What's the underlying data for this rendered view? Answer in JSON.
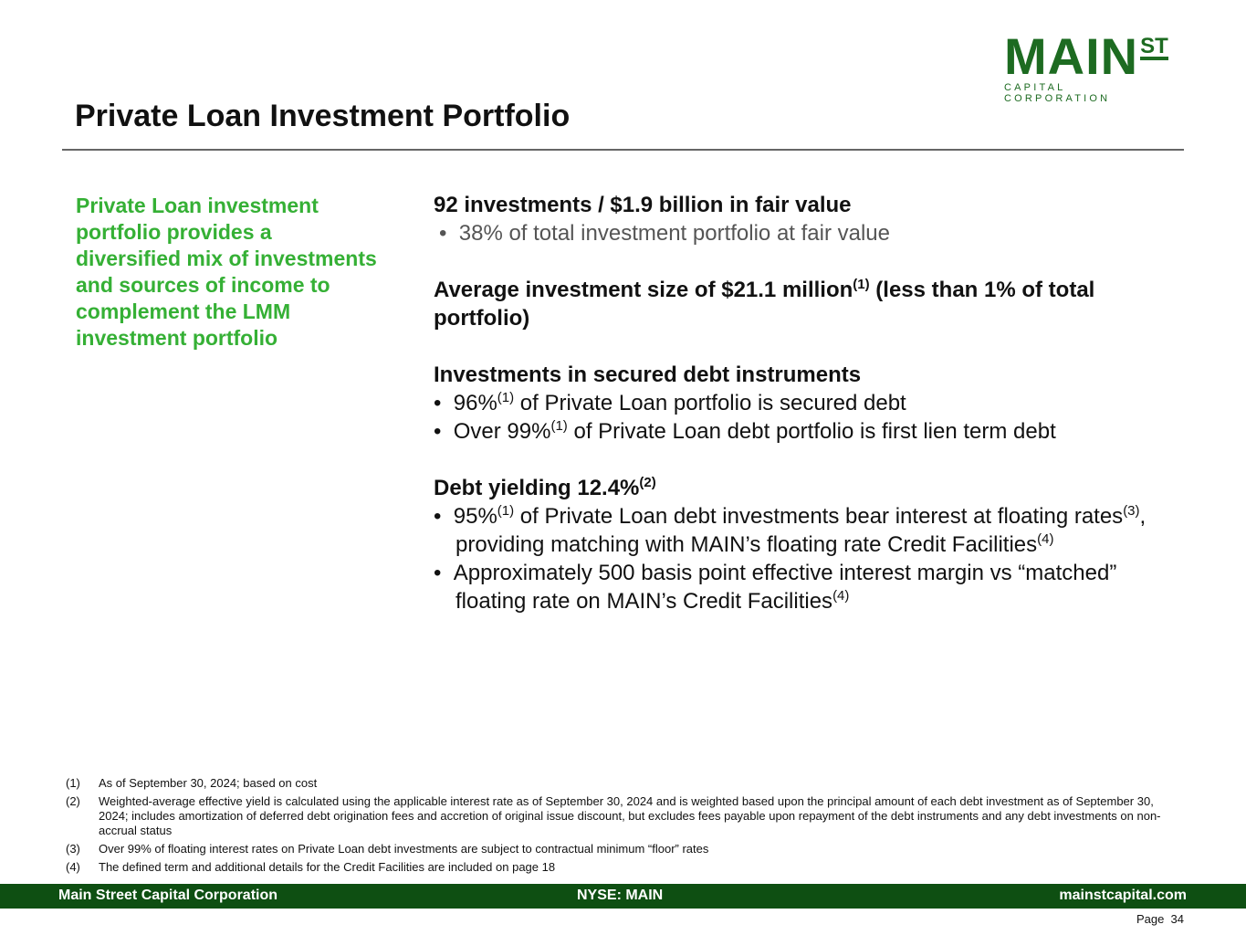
{
  "logo": {
    "main": "MAIN",
    "st": "ST",
    "sub": "CAPITAL CORPORATION"
  },
  "title": "Private Loan Investment Portfolio",
  "left_text": "Private Loan investment portfolio provides a diversified mix of investments and sources of income to complement the LMM investment portfolio",
  "right": {
    "h1": "92 investments / $1.9 billion in fair value",
    "b1": "38% of total investment portfolio at fair value",
    "h2a": "Average investment size of $21.1 million",
    "h2sup": "(1)",
    "h2b": " (less than 1% of total portfolio)",
    "h3": "Investments in secured debt instruments",
    "b3a": "96%",
    "b3asup": "(1)",
    "b3atext": " of Private Loan portfolio is secured debt",
    "b3b": "Over 99%",
    "b3bsup": "(1)",
    "b3btext": " of Private Loan debt portfolio is first lien term debt",
    "h4": "Debt yielding 12.4%",
    "h4sup": "(2)",
    "b4a1": "95%",
    "b4a1sup": "(1)",
    "b4a2": " of Private Loan debt investments bear interest at floating rates",
    "b4a2sup": "(3)",
    "b4a3": ", providing matching with MAIN’s floating rate Credit Facilities",
    "b4a3sup": "(4)",
    "b4b": "Approximately 500 basis point effective interest margin vs “matched” floating rate on MAIN’s Credit Facilities",
    "b4bsup": "(4)"
  },
  "footnotes": [
    {
      "num": "(1)",
      "text": "As of September 30, 2024; based on cost"
    },
    {
      "num": "(2)",
      "text": "Weighted-average effective yield is calculated using the applicable interest rate as of September 30, 2024 and is weighted based upon the principal amount of each debt investment as of September 30, 2024; includes amortization of deferred debt origination fees and accretion of original issue discount, but excludes fees payable upon repayment of the debt instruments and any debt investments on non-accrual status"
    },
    {
      "num": "(3)",
      "text": "Over 99% of floating interest rates on Private Loan debt investments are subject to contractual minimum “floor” rates"
    },
    {
      "num": "(4)",
      "text": "The defined term and additional details for the Credit Facilities are included on page 18"
    }
  ],
  "footer": {
    "left": "Main Street Capital Corporation",
    "center": "NYSE: MAIN",
    "right": "mainstcapital.com"
  },
  "page": "Page  34"
}
